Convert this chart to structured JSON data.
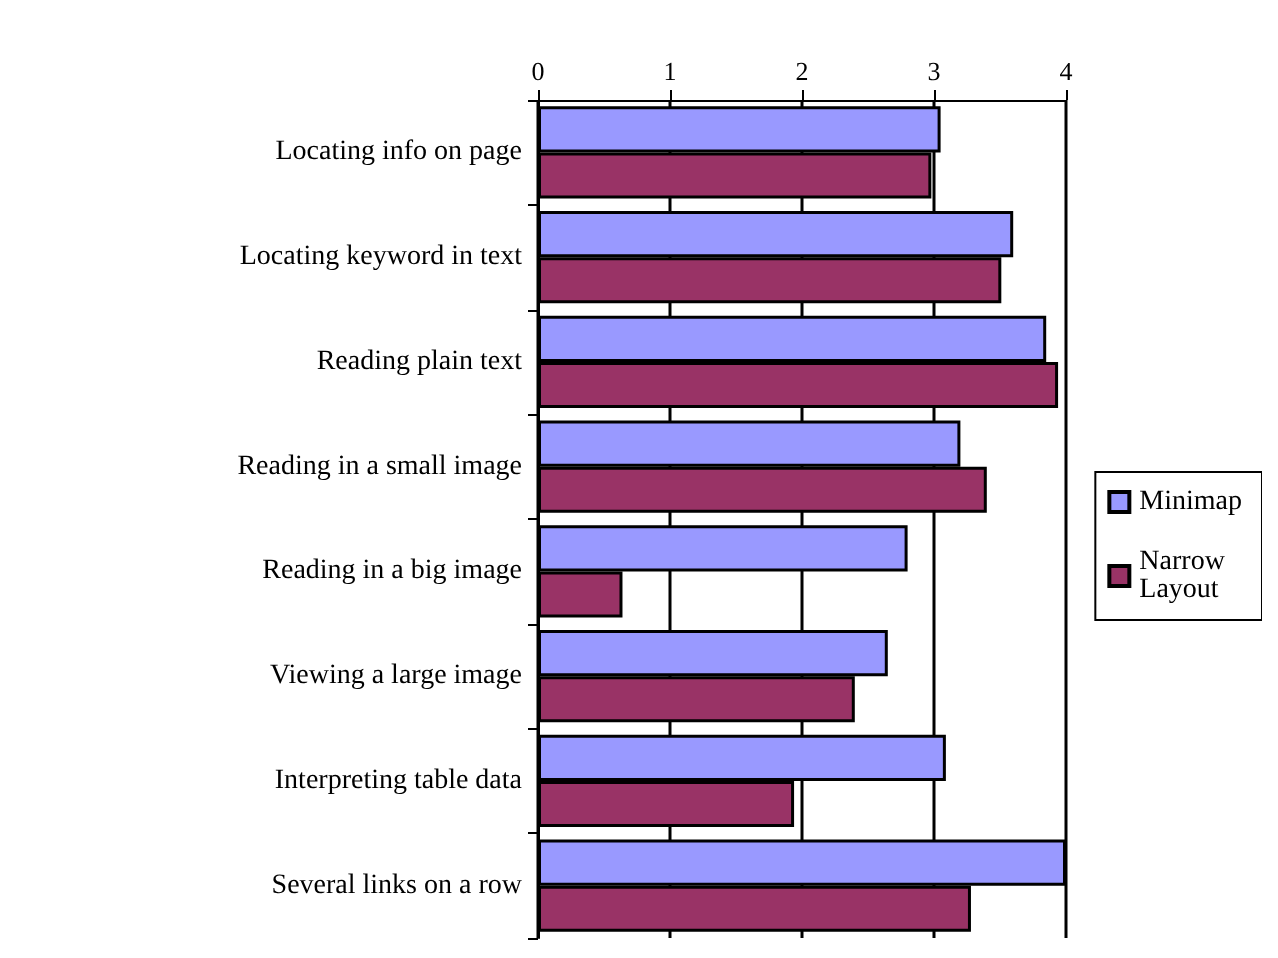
{
  "chart_data": {
    "type": "bar",
    "orientation": "horizontal",
    "categories": [
      "Locating info on page",
      "Locating keyword in text",
      "Reading plain text",
      "Reading in a small image",
      "Reading in a big image",
      "Viewing a large image",
      "Interpreting table data",
      "Several links on a row"
    ],
    "series": [
      {
        "name": "Minimap",
        "color": "#9999ff",
        "values": [
          3.05,
          3.6,
          3.85,
          3.2,
          2.8,
          2.65,
          3.09,
          4.0
        ]
      },
      {
        "name": "Narrow Layout",
        "color": "#993366",
        "values": [
          2.98,
          3.51,
          3.94,
          3.4,
          0.64,
          2.4,
          1.94,
          3.28
        ]
      }
    ],
    "xlim": [
      0,
      4
    ],
    "xticks": [
      0,
      1,
      2,
      3,
      4
    ],
    "grid": "x",
    "legend": "right"
  }
}
